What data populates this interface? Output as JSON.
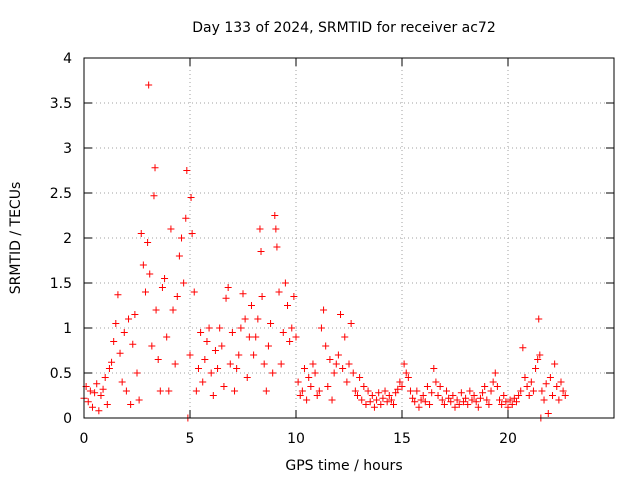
{
  "chart_data": {
    "type": "scatter",
    "title": "Day 133 of 2024, SRMTID for receiver ac72",
    "xlabel": "GPS time / hours",
    "ylabel": "SRMTID / TECUs",
    "xlim": [
      0,
      25
    ],
    "ylim": [
      0,
      4
    ],
    "xticks": [
      0,
      5,
      10,
      15,
      20
    ],
    "yticks": [
      0,
      0.5,
      1,
      1.5,
      2,
      2.5,
      3,
      3.5,
      4
    ],
    "xtick_labels": [
      "0",
      "5",
      "10",
      "15",
      "20"
    ],
    "ytick_labels": [
      "0",
      "0.5",
      "1",
      "1.5",
      "2",
      "2.5",
      "3",
      "3.5",
      "4"
    ],
    "grid": true,
    "marker": "+",
    "color": "#ff0000",
    "series": [
      {
        "name": "SRMTID",
        "points": [
          [
            0.0,
            0.22
          ],
          [
            0.1,
            0.35
          ],
          [
            0.2,
            0.18
          ],
          [
            0.3,
            0.3
          ],
          [
            0.4,
            0.12
          ],
          [
            0.5,
            0.28
          ],
          [
            0.6,
            0.38
          ],
          [
            0.7,
            0.08
          ],
          [
            0.8,
            0.25
          ],
          [
            0.9,
            0.32
          ],
          [
            1.0,
            0.45
          ],
          [
            1.1,
            0.15
          ],
          [
            1.2,
            0.55
          ],
          [
            1.3,
            0.62
          ],
          [
            1.4,
            0.85
          ],
          [
            1.5,
            1.05
          ],
          [
            1.6,
            1.37
          ],
          [
            1.7,
            0.72
          ],
          [
            1.8,
            0.4
          ],
          [
            1.9,
            0.95
          ],
          [
            2.0,
            0.3
          ],
          [
            2.1,
            1.1
          ],
          [
            2.2,
            0.15
          ],
          [
            2.3,
            0.82
          ],
          [
            2.4,
            1.15
          ],
          [
            2.5,
            0.5
          ],
          [
            2.6,
            0.2
          ],
          [
            2.7,
            2.05
          ],
          [
            2.8,
            1.7
          ],
          [
            2.9,
            1.4
          ],
          [
            3.0,
            1.95
          ],
          [
            3.05,
            3.7
          ],
          [
            3.1,
            1.6
          ],
          [
            3.2,
            0.8
          ],
          [
            3.3,
            2.47
          ],
          [
            3.35,
            2.78
          ],
          [
            3.4,
            1.2
          ],
          [
            3.5,
            0.65
          ],
          [
            3.6,
            0.3
          ],
          [
            3.7,
            1.45
          ],
          [
            3.8,
            1.55
          ],
          [
            3.9,
            0.9
          ],
          [
            4.0,
            0.3
          ],
          [
            4.1,
            2.1
          ],
          [
            4.2,
            1.2
          ],
          [
            4.3,
            0.6
          ],
          [
            4.4,
            1.35
          ],
          [
            4.5,
            1.8
          ],
          [
            4.6,
            2.0
          ],
          [
            4.7,
            1.5
          ],
          [
            4.8,
            2.22
          ],
          [
            4.85,
            2.75
          ],
          [
            4.9,
            0.0
          ],
          [
            5.0,
            0.7
          ],
          [
            5.05,
            2.45
          ],
          [
            5.1,
            2.05
          ],
          [
            5.2,
            1.4
          ],
          [
            5.3,
            0.3
          ],
          [
            5.4,
            0.55
          ],
          [
            5.5,
            0.95
          ],
          [
            5.6,
            0.4
          ],
          [
            5.7,
            0.65
          ],
          [
            5.8,
            0.85
          ],
          [
            5.9,
            1.0
          ],
          [
            6.0,
            0.5
          ],
          [
            6.1,
            0.25
          ],
          [
            6.2,
            0.75
          ],
          [
            6.3,
            0.55
          ],
          [
            6.4,
            1.0
          ],
          [
            6.5,
            0.8
          ],
          [
            6.6,
            0.35
          ],
          [
            6.7,
            1.33
          ],
          [
            6.8,
            1.45
          ],
          [
            6.9,
            0.6
          ],
          [
            7.0,
            0.95
          ],
          [
            7.1,
            0.3
          ],
          [
            7.2,
            0.55
          ],
          [
            7.3,
            0.7
          ],
          [
            7.4,
            1.0
          ],
          [
            7.5,
            1.38
          ],
          [
            7.6,
            1.1
          ],
          [
            7.7,
            0.45
          ],
          [
            7.8,
            0.9
          ],
          [
            7.9,
            1.25
          ],
          [
            8.0,
            0.7
          ],
          [
            8.1,
            0.9
          ],
          [
            8.2,
            1.1
          ],
          [
            8.3,
            2.1
          ],
          [
            8.35,
            1.85
          ],
          [
            8.4,
            1.35
          ],
          [
            8.5,
            0.6
          ],
          [
            8.6,
            0.3
          ],
          [
            8.7,
            0.8
          ],
          [
            8.8,
            1.05
          ],
          [
            8.9,
            0.5
          ],
          [
            9.0,
            2.25
          ],
          [
            9.05,
            2.1
          ],
          [
            9.1,
            1.9
          ],
          [
            9.2,
            1.4
          ],
          [
            9.3,
            0.6
          ],
          [
            9.4,
            0.95
          ],
          [
            9.5,
            1.5
          ],
          [
            9.6,
            1.25
          ],
          [
            9.7,
            0.85
          ],
          [
            9.8,
            1.0
          ],
          [
            9.9,
            1.35
          ],
          [
            10.0,
            0.9
          ],
          [
            10.1,
            0.4
          ],
          [
            10.2,
            0.25
          ],
          [
            10.3,
            0.3
          ],
          [
            10.4,
            0.55
          ],
          [
            10.5,
            0.2
          ],
          [
            10.6,
            0.45
          ],
          [
            10.7,
            0.35
          ],
          [
            10.8,
            0.6
          ],
          [
            10.9,
            0.5
          ],
          [
            11.0,
            0.25
          ],
          [
            11.1,
            0.3
          ],
          [
            11.2,
            1.0
          ],
          [
            11.3,
            1.2
          ],
          [
            11.4,
            0.8
          ],
          [
            11.5,
            0.35
          ],
          [
            11.6,
            0.65
          ],
          [
            11.7,
            0.2
          ],
          [
            11.8,
            0.5
          ],
          [
            11.9,
            0.6
          ],
          [
            12.0,
            0.7
          ],
          [
            12.1,
            1.15
          ],
          [
            12.2,
            0.55
          ],
          [
            12.3,
            0.9
          ],
          [
            12.4,
            0.4
          ],
          [
            12.5,
            0.6
          ],
          [
            12.6,
            1.05
          ],
          [
            12.7,
            0.5
          ],
          [
            12.8,
            0.3
          ],
          [
            12.9,
            0.25
          ],
          [
            13.0,
            0.45
          ],
          [
            13.1,
            0.2
          ],
          [
            13.2,
            0.35
          ],
          [
            13.3,
            0.15
          ],
          [
            13.4,
            0.3
          ],
          [
            13.5,
            0.18
          ],
          [
            13.6,
            0.25
          ],
          [
            13.7,
            0.12
          ],
          [
            13.8,
            0.2
          ],
          [
            13.9,
            0.28
          ],
          [
            14.0,
            0.15
          ],
          [
            14.1,
            0.22
          ],
          [
            14.2,
            0.3
          ],
          [
            14.3,
            0.18
          ],
          [
            14.4,
            0.25
          ],
          [
            14.5,
            0.2
          ],
          [
            14.6,
            0.15
          ],
          [
            14.7,
            0.28
          ],
          [
            14.8,
            0.32
          ],
          [
            14.9,
            0.4
          ],
          [
            15.0,
            0.35
          ],
          [
            15.1,
            0.6
          ],
          [
            15.2,
            0.5
          ],
          [
            15.3,
            0.45
          ],
          [
            15.4,
            0.3
          ],
          [
            15.5,
            0.22
          ],
          [
            15.6,
            0.18
          ],
          [
            15.7,
            0.3
          ],
          [
            15.8,
            0.12
          ],
          [
            15.9,
            0.2
          ],
          [
            16.0,
            0.25
          ],
          [
            16.1,
            0.18
          ],
          [
            16.2,
            0.35
          ],
          [
            16.3,
            0.15
          ],
          [
            16.4,
            0.28
          ],
          [
            16.5,
            0.55
          ],
          [
            16.6,
            0.4
          ],
          [
            16.7,
            0.25
          ],
          [
            16.8,
            0.35
          ],
          [
            16.9,
            0.2
          ],
          [
            17.0,
            0.15
          ],
          [
            17.1,
            0.3
          ],
          [
            17.2,
            0.22
          ],
          [
            17.3,
            0.18
          ],
          [
            17.4,
            0.25
          ],
          [
            17.5,
            0.12
          ],
          [
            17.6,
            0.2
          ],
          [
            17.7,
            0.15
          ],
          [
            17.8,
            0.28
          ],
          [
            17.9,
            0.18
          ],
          [
            18.0,
            0.22
          ],
          [
            18.1,
            0.15
          ],
          [
            18.2,
            0.3
          ],
          [
            18.3,
            0.2
          ],
          [
            18.4,
            0.25
          ],
          [
            18.5,
            0.18
          ],
          [
            18.6,
            0.12
          ],
          [
            18.7,
            0.22
          ],
          [
            18.8,
            0.28
          ],
          [
            18.9,
            0.35
          ],
          [
            19.0,
            0.2
          ],
          [
            19.1,
            0.15
          ],
          [
            19.2,
            0.3
          ],
          [
            19.3,
            0.4
          ],
          [
            19.4,
            0.5
          ],
          [
            19.5,
            0.35
          ],
          [
            19.6,
            0.2
          ],
          [
            19.7,
            0.15
          ],
          [
            19.8,
            0.25
          ],
          [
            19.9,
            0.18
          ],
          [
            20.0,
            0.12
          ],
          [
            20.1,
            0.2
          ],
          [
            20.2,
            0.15
          ],
          [
            20.3,
            0.22
          ],
          [
            20.4,
            0.18
          ],
          [
            20.5,
            0.25
          ],
          [
            20.6,
            0.3
          ],
          [
            20.7,
            0.78
          ],
          [
            20.8,
            0.45
          ],
          [
            20.9,
            0.35
          ],
          [
            21.0,
            0.25
          ],
          [
            21.1,
            0.4
          ],
          [
            21.2,
            0.3
          ],
          [
            21.3,
            0.55
          ],
          [
            21.4,
            0.65
          ],
          [
            21.45,
            1.1
          ],
          [
            21.5,
            0.7
          ],
          [
            21.55,
            0.0
          ],
          [
            21.6,
            0.3
          ],
          [
            21.7,
            0.2
          ],
          [
            21.8,
            0.38
          ],
          [
            21.9,
            0.05
          ],
          [
            22.0,
            0.45
          ],
          [
            22.1,
            0.25
          ],
          [
            22.2,
            0.6
          ],
          [
            22.3,
            0.35
          ],
          [
            22.4,
            0.2
          ],
          [
            22.5,
            0.4
          ],
          [
            22.6,
            0.3
          ],
          [
            22.7,
            0.25
          ]
        ]
      }
    ]
  }
}
